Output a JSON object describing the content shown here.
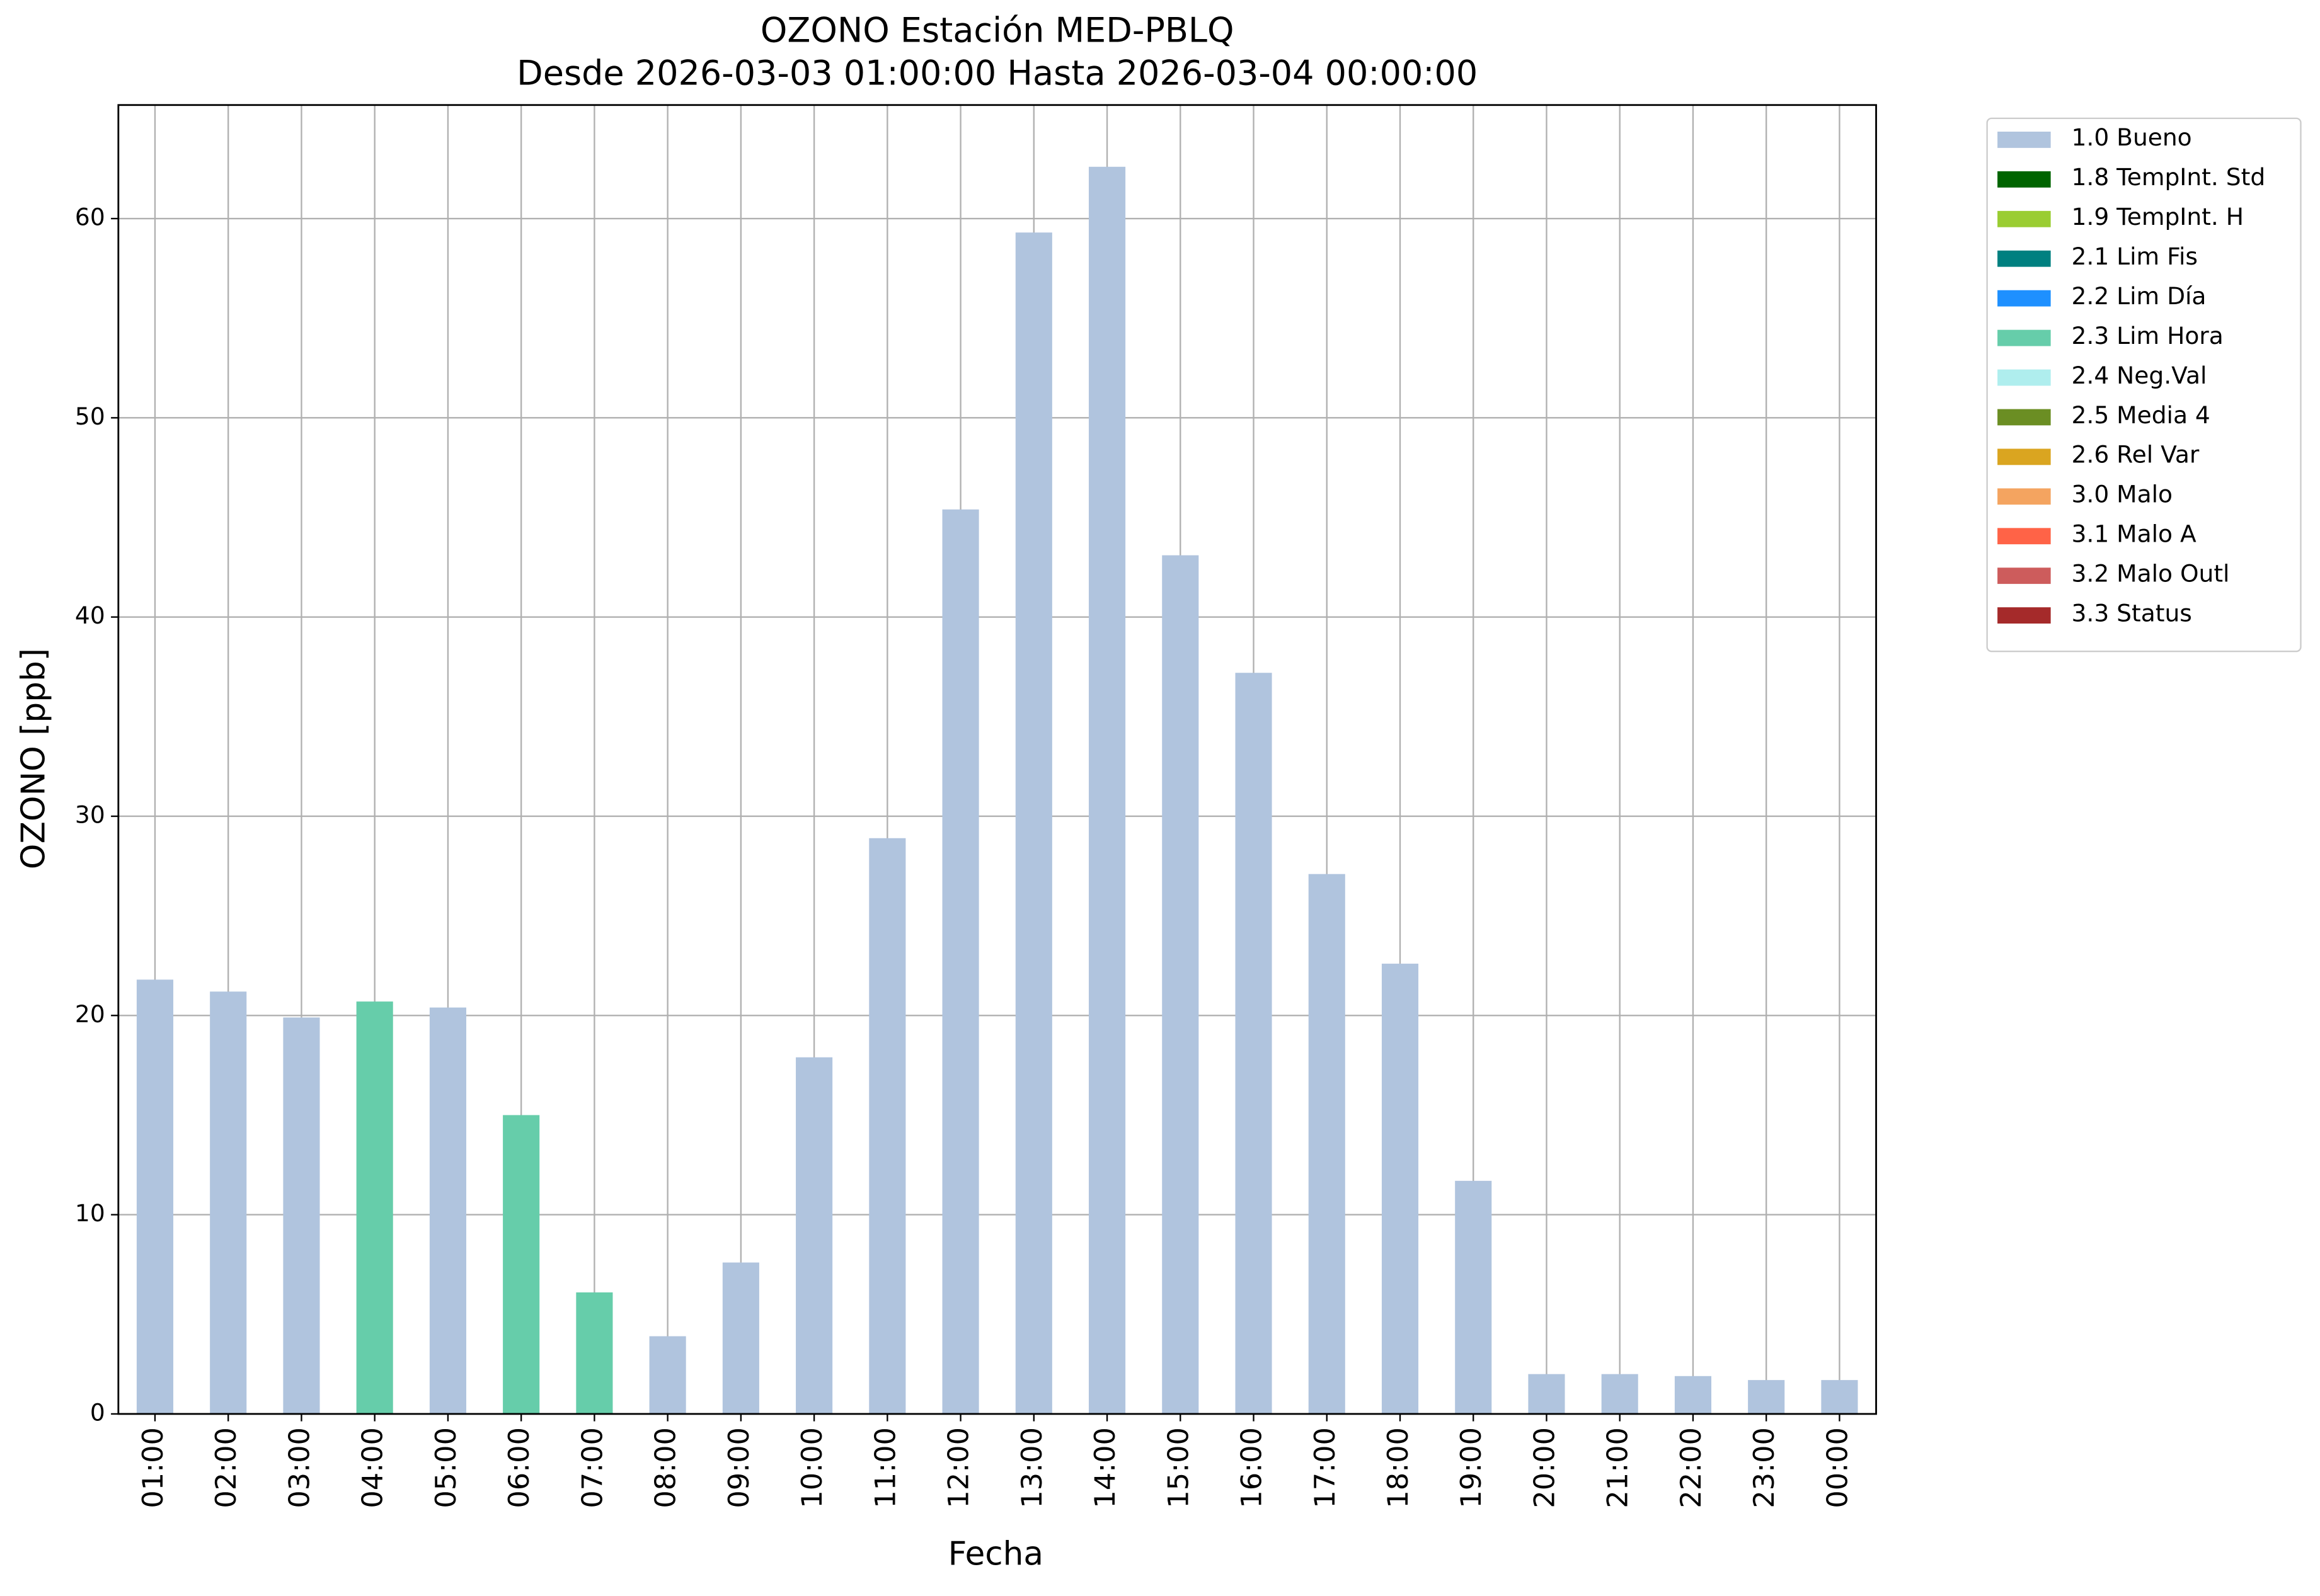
{
  "chart_data": {
    "type": "bar",
    "stacked": true,
    "title": "OZONO Estación MED-PBLQ",
    "subtitle": "Desde 2026-03-03 01:00:00 Hasta 2026-03-04 00:00:00",
    "x_label": "Fecha",
    "y_label": "OZONO [ppb]",
    "categories": [
      "01:00",
      "02:00",
      "03:00",
      "04:00",
      "05:00",
      "06:00",
      "07:00",
      "08:00",
      "09:00",
      "10:00",
      "11:00",
      "12:00",
      "13:00",
      "14:00",
      "15:00",
      "16:00",
      "17:00",
      "18:00",
      "19:00",
      "20:00",
      "21:00",
      "22:00",
      "23:00",
      "00:00"
    ],
    "series": [
      {
        "name": "1.0 Bueno",
        "color": "#b0c4de",
        "values": [
          21.8,
          21.2,
          19.9,
          null,
          20.4,
          null,
          null,
          3.9,
          7.6,
          17.9,
          28.9,
          45.4,
          59.3,
          62.6,
          43.1,
          37.2,
          27.1,
          22.6,
          11.7,
          2.0,
          2.0,
          1.9,
          1.7,
          1.7
        ]
      },
      {
        "name": "1.8 TempInt. Std",
        "color": "#006400",
        "values": [
          null,
          null,
          null,
          null,
          null,
          null,
          null,
          null,
          null,
          null,
          null,
          null,
          null,
          null,
          null,
          null,
          null,
          null,
          null,
          null,
          null,
          null,
          null,
          null
        ]
      },
      {
        "name": "1.9 TempInt. H",
        "color": "#9acd32",
        "values": [
          null,
          null,
          null,
          null,
          null,
          null,
          null,
          null,
          null,
          null,
          null,
          null,
          null,
          null,
          null,
          null,
          null,
          null,
          null,
          null,
          null,
          null,
          null,
          null
        ]
      },
      {
        "name": "2.1 Lim Fis",
        "color": "#008080",
        "values": [
          null,
          null,
          null,
          null,
          null,
          null,
          null,
          null,
          null,
          null,
          null,
          null,
          null,
          null,
          null,
          null,
          null,
          null,
          null,
          null,
          null,
          null,
          null,
          null
        ]
      },
      {
        "name": "2.2 Lim Día",
        "color": "#1e90ff",
        "values": [
          null,
          null,
          null,
          null,
          null,
          null,
          null,
          null,
          null,
          null,
          null,
          null,
          null,
          null,
          null,
          null,
          null,
          null,
          null,
          null,
          null,
          null,
          null,
          null
        ]
      },
      {
        "name": "2.3 Lim Hora",
        "color": "#66cdaa",
        "values": [
          null,
          null,
          null,
          20.7,
          null,
          15.0,
          6.1,
          null,
          null,
          null,
          null,
          null,
          null,
          null,
          null,
          null,
          null,
          null,
          null,
          null,
          null,
          null,
          null,
          null
        ]
      },
      {
        "name": "2.4 Neg.Val",
        "color": "#afeeee",
        "values": [
          null,
          null,
          null,
          null,
          null,
          null,
          null,
          null,
          null,
          null,
          null,
          null,
          null,
          null,
          null,
          null,
          null,
          null,
          null,
          null,
          null,
          null,
          null,
          null
        ]
      },
      {
        "name": "2.5 Media 4",
        "color": "#6b8e23",
        "values": [
          null,
          null,
          null,
          null,
          null,
          null,
          null,
          null,
          null,
          null,
          null,
          null,
          null,
          null,
          null,
          null,
          null,
          null,
          null,
          null,
          null,
          null,
          null,
          null
        ]
      },
      {
        "name": "2.6 Rel Var",
        "color": "#daa520",
        "values": [
          null,
          null,
          null,
          null,
          null,
          null,
          null,
          null,
          null,
          null,
          null,
          null,
          null,
          null,
          null,
          null,
          null,
          null,
          null,
          null,
          null,
          null,
          null,
          null
        ]
      },
      {
        "name": "3.0 Malo",
        "color": "#f4a460",
        "values": [
          null,
          null,
          null,
          null,
          null,
          null,
          null,
          null,
          null,
          null,
          null,
          null,
          null,
          null,
          null,
          null,
          null,
          null,
          null,
          null,
          null,
          null,
          null,
          null
        ]
      },
      {
        "name": "3.1 Malo A",
        "color": "#ff6347",
        "values": [
          null,
          null,
          null,
          null,
          null,
          null,
          null,
          null,
          null,
          null,
          null,
          null,
          null,
          null,
          null,
          null,
          null,
          null,
          null,
          null,
          null,
          null,
          null,
          null
        ]
      },
      {
        "name": "3.2 Malo Outl",
        "color": "#cd5c5c",
        "values": [
          null,
          null,
          null,
          null,
          null,
          null,
          null,
          null,
          null,
          null,
          null,
          null,
          null,
          null,
          null,
          null,
          null,
          null,
          null,
          null,
          null,
          null,
          null,
          null
        ]
      },
      {
        "name": "3.3 Status",
        "color": "#a52a2a",
        "values": [
          null,
          null,
          null,
          null,
          null,
          null,
          null,
          null,
          null,
          null,
          null,
          null,
          null,
          null,
          null,
          null,
          null,
          null,
          null,
          null,
          null,
          null,
          null,
          null
        ]
      }
    ],
    "ylim": [
      0,
      65.7
    ],
    "yticks": [
      0,
      10,
      20,
      30,
      40,
      50,
      60
    ],
    "grid": true,
    "legend": "outside right"
  }
}
